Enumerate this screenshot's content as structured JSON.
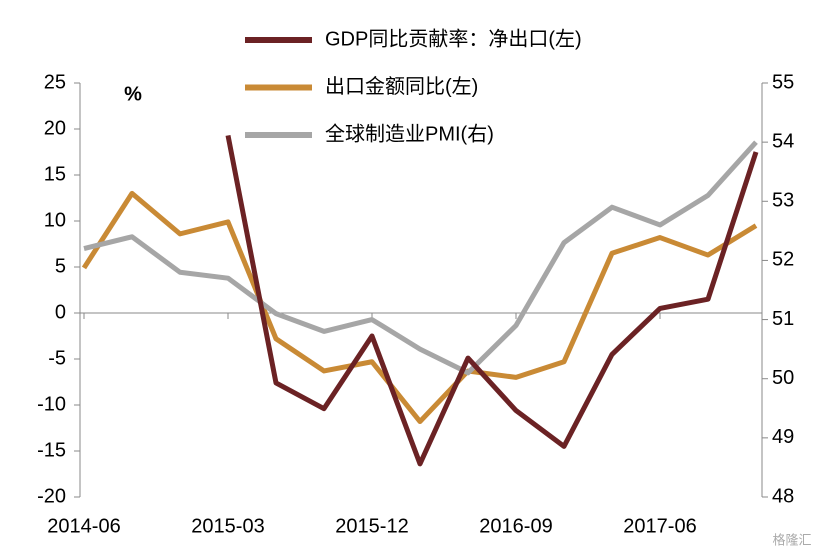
{
  "chart_data": {
    "type": "line",
    "unit_label": "%",
    "watermark": "格隆汇",
    "categories": [
      "2014-06",
      null,
      null,
      "2015-03",
      null,
      null,
      "2015-12",
      null,
      null,
      "2016-09",
      null,
      null,
      "2017-06",
      null,
      null
    ],
    "series": [
      {
        "name": "GDP同比贡献率：净出口(左)",
        "color": "#6b2224",
        "values": [
          null,
          null,
          null,
          19.3,
          -7.6,
          -10.4,
          -2.5,
          -16.4,
          -4.9,
          -10.6,
          -14.5,
          -4.5,
          0.5,
          1.5,
          17.5
        ]
      },
      {
        "name": "出口金额同比(左)",
        "color": "#c98a35",
        "values": [
          4.9,
          13,
          8.6,
          9.9,
          -2.8,
          -6.3,
          -5.3,
          -11.8,
          -6.3,
          -7,
          -5.3,
          6.5,
          8.2,
          6.3,
          9.5
        ]
      },
      {
        "name": "全球制造业PMI(右)",
        "color": "#a6a6a6",
        "axis": "y2",
        "values": [
          52.2,
          52.4,
          51.8,
          51.7,
          51.1,
          50.8,
          51.0,
          50.5,
          50.1,
          50.9,
          52.3,
          52.9,
          52.6,
          53.1,
          54.0
        ]
      }
    ],
    "ylim": [
      -20,
      25
    ],
    "yticks": [
      -20,
      -15,
      -10,
      -5,
      0,
      5,
      10,
      15,
      20,
      25
    ],
    "y2lim": [
      48,
      55
    ],
    "y2ticks": [
      48,
      49,
      50,
      51,
      52,
      53,
      54,
      55
    ]
  }
}
